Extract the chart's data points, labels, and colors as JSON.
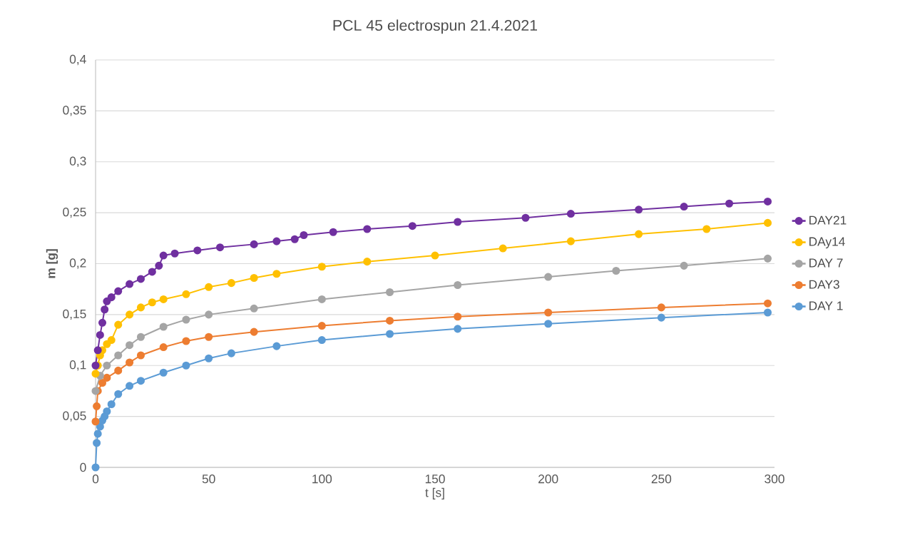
{
  "chart_data": {
    "type": "line",
    "title": "PCL 45 electrospun  21.4.2021",
    "xlabel": "t [s]",
    "ylabel": "m [g]",
    "xlim": [
      0,
      300
    ],
    "xticks": [
      0,
      50,
      100,
      150,
      200,
      250,
      300
    ],
    "ylim": [
      0,
      0.4
    ],
    "yticks": [
      0,
      {
        "value": 0.05,
        "label": "0,05"
      },
      {
        "value": 0.1,
        "label": "0,1"
      },
      {
        "value": 0.15,
        "label": "0,15"
      },
      {
        "value": 0.2,
        "label": "0,2"
      },
      {
        "value": 0.25,
        "label": "0,25"
      },
      {
        "value": 0.3,
        "label": "0,3"
      },
      {
        "value": 0.35,
        "label": "0,35"
      },
      {
        "value": 0.4,
        "label": "0,4"
      }
    ],
    "grid": "y",
    "legend": "right",
    "marker": "circle",
    "line_style": "solid",
    "series": [
      {
        "name": "DAY21",
        "color": "#7030a0",
        "x": [
          0,
          1,
          2,
          3,
          4,
          5,
          7,
          10,
          15,
          20,
          25,
          28,
          30,
          35,
          45,
          55,
          70,
          80,
          88,
          92,
          105,
          120,
          140,
          160,
          190,
          210,
          240,
          260,
          280,
          297
        ],
        "values": [
          0.1,
          0.115,
          0.13,
          0.142,
          0.155,
          0.163,
          0.167,
          0.173,
          0.18,
          0.185,
          0.192,
          0.198,
          0.208,
          0.21,
          0.213,
          0.216,
          0.219,
          0.222,
          0.224,
          0.228,
          0.231,
          0.234,
          0.237,
          0.241,
          0.245,
          0.249,
          0.253,
          0.256,
          0.259,
          0.261
        ]
      },
      {
        "name": "DAy14",
        "color": "#ffc000",
        "x": [
          0,
          1,
          2,
          3,
          5,
          7,
          10,
          15,
          20,
          25,
          30,
          40,
          50,
          60,
          70,
          80,
          100,
          120,
          150,
          180,
          210,
          240,
          270,
          297
        ],
        "values": [
          0.092,
          0.1,
          0.11,
          0.115,
          0.121,
          0.125,
          0.14,
          0.15,
          0.157,
          0.162,
          0.165,
          0.17,
          0.177,
          0.181,
          0.186,
          0.19,
          0.197,
          0.202,
          0.208,
          0.215,
          0.222,
          0.229,
          0.234,
          0.24
        ]
      },
      {
        "name": "DAY 7",
        "color": "#a5a5a5",
        "x": [
          0,
          2,
          5,
          10,
          15,
          20,
          30,
          40,
          50,
          70,
          100,
          130,
          160,
          200,
          230,
          260,
          297
        ],
        "values": [
          0.075,
          0.09,
          0.1,
          0.11,
          0.12,
          0.128,
          0.138,
          0.145,
          0.15,
          0.156,
          0.165,
          0.172,
          0.179,
          0.187,
          0.193,
          0.198,
          0.205
        ]
      },
      {
        "name": "DAY3",
        "color": "#ed7d31",
        "x": [
          0,
          0.5,
          1,
          3,
          5,
          10,
          15,
          20,
          30,
          40,
          50,
          70,
          100,
          130,
          160,
          200,
          250,
          297
        ],
        "values": [
          0.045,
          0.06,
          0.075,
          0.083,
          0.088,
          0.095,
          0.103,
          0.11,
          0.118,
          0.124,
          0.128,
          0.133,
          0.139,
          0.144,
          0.148,
          0.152,
          0.157,
          0.161
        ]
      },
      {
        "name": "DAY 1",
        "color": "#5b9bd5",
        "x": [
          0,
          0.5,
          1,
          2,
          3,
          4,
          5,
          7,
          10,
          15,
          20,
          30,
          40,
          50,
          60,
          80,
          100,
          130,
          160,
          200,
          250,
          297
        ],
        "values": [
          0,
          0.024,
          0.033,
          0.04,
          0.046,
          0.05,
          0.055,
          0.062,
          0.072,
          0.08,
          0.085,
          0.093,
          0.1,
          0.107,
          0.112,
          0.119,
          0.125,
          0.131,
          0.136,
          0.141,
          0.147,
          0.152
        ]
      }
    ]
  }
}
